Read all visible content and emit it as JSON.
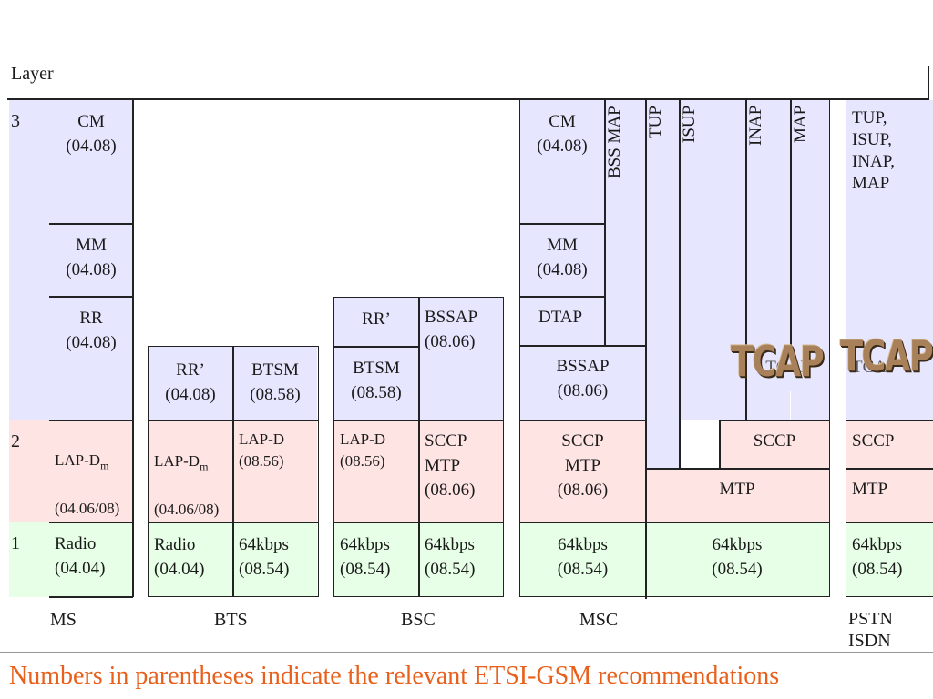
{
  "layer_header": "Layer",
  "layers": {
    "l3": "3",
    "l2": "2",
    "l1": "1"
  },
  "nodes": {
    "ms": "MS",
    "bts": "BTS",
    "bsc": "BSC",
    "msc": "MSC",
    "pstn": "PSTN\nISDN"
  },
  "ms": {
    "cm": "CM\n(04.08)",
    "mm": "MM\n(04.08)",
    "rr": "RR\n(04.08)",
    "lapd_main": "LAP-D",
    "lapd_sub": "m",
    "lapd_rec": "(04.06/08)",
    "radio": "Radio\n(04.04)"
  },
  "bts": {
    "rr": "RR’\n(04.08)",
    "btsm": "BTSM\n(08.58)",
    "lapdm_main": "LAP-D",
    "lapdm_sub": "m",
    "lapdm_rec": "(04.06/08)",
    "lapd": "LAP-D\n(08.56)",
    "radio": "Radio\n(04.04)",
    "kbps": "64kbps\n(08.54)"
  },
  "bsc": {
    "rr": "RR’",
    "bssap": "BSSAP\n(08.06)",
    "btsm": "BTSM\n(08.58)",
    "lapd": "LAP-D\n(08.56)",
    "sccp_mtp": "SCCP\nMTP\n(08.06)",
    "kbps_left": "64kbps\n(08.54)",
    "kbps_right": "64kbps\n(08.54)"
  },
  "msc": {
    "cm": "CM\n(04.08)",
    "bss_map": "BSS MAP",
    "tup": "TUP",
    "isup": "ISUP",
    "inap": "INAP",
    "map": "MAP",
    "mm": "MM\n(04.08)",
    "dtap": "DTAP",
    "bssap": "BSSAP\n(08.06)",
    "tcap_hidden": "TCAP",
    "sccp_mtp": "SCCP\nMTP\n(08.06)",
    "sccp": "SCCP",
    "mtp": "MTP",
    "kbps_left": "64kbps\n(08.54)",
    "kbps_right": "64kbps\n(08.54)"
  },
  "pstn": {
    "upper": "TUP,\nISUP,\nINAP,\nMAP",
    "tcap_hidden": "TCAP",
    "sccp": "SCCP",
    "mtp": "MTP",
    "kbps": "64kbps\n(08.54)"
  },
  "tcap_labels": [
    "TCAP",
    "TCAP"
  ],
  "caption": "Numbers in parentheses indicate the relevant ETSI-GSM recommendations",
  "colors": {
    "layer3": "#e6e6ff",
    "layer2": "#ffe4e4",
    "layer1": "#e6ffe6",
    "caption": "#e8601c"
  }
}
